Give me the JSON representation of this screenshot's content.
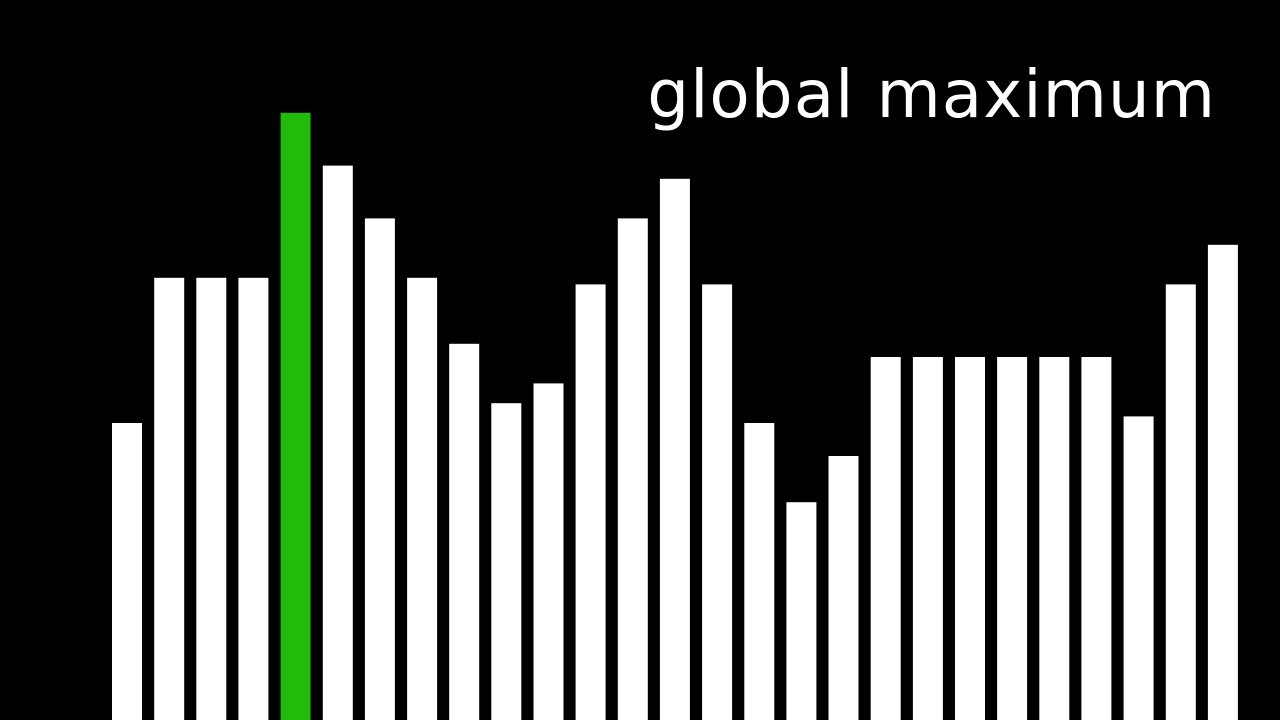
{
  "chart_data": {
    "type": "bar",
    "title": "",
    "annotation": "global maximum",
    "xlabel": "",
    "ylabel": "",
    "ylim": [
      0,
      100
    ],
    "grid": false,
    "highlight_index": 4,
    "values": [
      45,
      67,
      67,
      67,
      92,
      84,
      76,
      67,
      57,
      48,
      51,
      66,
      76,
      82,
      66,
      45,
      33,
      40,
      55,
      55,
      55,
      55,
      55,
      55,
      46,
      66,
      72
    ]
  },
  "colors": {
    "background": "#000000",
    "bar": "#ffffff",
    "highlight": "#22bb0b",
    "text": "#ffffff"
  }
}
